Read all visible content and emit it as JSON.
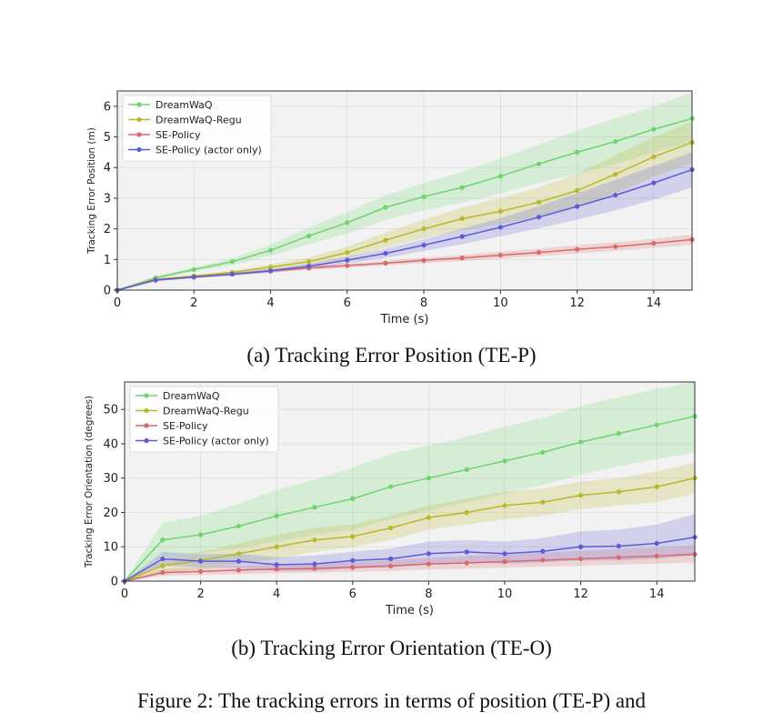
{
  "captions": {
    "a": "(a) Tracking Error Position (TE-P)",
    "b": "(b) Tracking Error Orientation (TE-O)",
    "figure": "Figure 2: The tracking errors in terms of position (TE-P) and"
  },
  "colors": {
    "DreamWaQ": "#6fd46f",
    "DreamWaQ-Regu": "#b8b82a",
    "SE-Policy": "#d96a6a",
    "SE-Policy (actor only)": "#5c5cd6"
  },
  "chart_data": [
    {
      "type": "line",
      "title": "",
      "xlabel": "Time (s)",
      "ylabel": "Tracking Error Position (m)",
      "xlim": [
        0,
        15
      ],
      "ylim": [
        0,
        6.5
      ],
      "xticks": [
        0,
        2,
        4,
        6,
        8,
        10,
        12,
        14
      ],
      "yticks": [
        0,
        1,
        2,
        3,
        4,
        5,
        6
      ],
      "grid": true,
      "legend": "top-left",
      "x": [
        0,
        1,
        2,
        3,
        4,
        5,
        6,
        7,
        8,
        9,
        10,
        11,
        12,
        13,
        14,
        15
      ],
      "series": [
        {
          "name": "DreamWaQ",
          "values": [
            0,
            0.4,
            0.67,
            0.93,
            1.3,
            1.77,
            2.2,
            2.7,
            3.05,
            3.35,
            3.72,
            4.12,
            4.5,
            4.85,
            5.25,
            5.6
          ],
          "band_low": [
            0,
            0.35,
            0.6,
            0.82,
            1.12,
            1.5,
            1.85,
            2.3,
            2.6,
            2.85,
            3.15,
            3.5,
            3.8,
            4.1,
            4.5,
            4.85
          ],
          "band_high": [
            0,
            0.45,
            0.74,
            1.04,
            1.48,
            2.05,
            2.55,
            3.1,
            3.5,
            3.85,
            4.3,
            4.75,
            5.2,
            5.6,
            6.0,
            6.45
          ]
        },
        {
          "name": "DreamWaQ-Regu",
          "values": [
            0,
            0.35,
            0.46,
            0.58,
            0.75,
            0.93,
            1.23,
            1.63,
            2.0,
            2.33,
            2.57,
            2.87,
            3.25,
            3.78,
            4.35,
            4.82
          ],
          "band_low": [
            0,
            0.32,
            0.42,
            0.52,
            0.66,
            0.8,
            1.05,
            1.38,
            1.7,
            1.95,
            2.15,
            2.4,
            2.7,
            3.15,
            3.7,
            4.15
          ],
          "band_high": [
            0,
            0.38,
            0.5,
            0.64,
            0.84,
            1.06,
            1.42,
            1.88,
            2.3,
            2.7,
            3.0,
            3.35,
            3.8,
            4.4,
            5.0,
            5.5
          ]
        },
        {
          "name": "SE-Policy",
          "values": [
            0,
            0.32,
            0.42,
            0.52,
            0.62,
            0.72,
            0.8,
            0.88,
            0.97,
            1.05,
            1.14,
            1.23,
            1.33,
            1.42,
            1.53,
            1.65
          ],
          "band_low": [
            0,
            0.3,
            0.39,
            0.48,
            0.57,
            0.66,
            0.73,
            0.8,
            0.88,
            0.95,
            1.03,
            1.11,
            1.2,
            1.28,
            1.38,
            1.48
          ],
          "band_high": [
            0,
            0.34,
            0.45,
            0.56,
            0.67,
            0.78,
            0.87,
            0.96,
            1.06,
            1.15,
            1.25,
            1.35,
            1.46,
            1.56,
            1.68,
            1.82
          ]
        },
        {
          "name": "SE-Policy (actor only)",
          "values": [
            0,
            0.33,
            0.43,
            0.52,
            0.63,
            0.78,
            0.98,
            1.2,
            1.47,
            1.75,
            2.05,
            2.38,
            2.73,
            3.1,
            3.5,
            3.93
          ],
          "band_low": [
            0,
            0.3,
            0.39,
            0.47,
            0.57,
            0.7,
            0.87,
            1.05,
            1.28,
            1.5,
            1.75,
            2.02,
            2.3,
            2.6,
            2.95,
            3.35
          ],
          "band_high": [
            0,
            0.36,
            0.47,
            0.57,
            0.69,
            0.86,
            1.09,
            1.35,
            1.66,
            2.0,
            2.35,
            2.74,
            3.16,
            3.6,
            4.05,
            4.5
          ]
        }
      ]
    },
    {
      "type": "line",
      "title": "",
      "xlabel": "Time (s)",
      "ylabel": "Tracking Error Orientation (degrees)",
      "xlim": [
        0,
        15
      ],
      "ylim": [
        0,
        58
      ],
      "xticks": [
        0,
        2,
        4,
        6,
        8,
        10,
        12,
        14
      ],
      "yticks": [
        0,
        10,
        20,
        30,
        40,
        50
      ],
      "grid": true,
      "legend": "top-left",
      "x": [
        0,
        1,
        2,
        3,
        4,
        5,
        6,
        7,
        8,
        9,
        10,
        11,
        12,
        13,
        14,
        15
      ],
      "series": [
        {
          "name": "DreamWaQ",
          "values": [
            0,
            12,
            13.5,
            16,
            19,
            21.5,
            24,
            27.5,
            30,
            32.5,
            35,
            37.5,
            40.5,
            43,
            45.5,
            48
          ],
          "band_low": [
            0,
            7,
            8,
            9.5,
            11.5,
            13.5,
            15,
            18,
            20.5,
            23,
            25.5,
            28,
            31,
            33.5,
            35.5,
            37.5
          ],
          "band_high": [
            0,
            17,
            19,
            22.5,
            26.5,
            29.5,
            33,
            37,
            39.5,
            42,
            45,
            47.5,
            51,
            53.5,
            56,
            58
          ]
        },
        {
          "name": "DreamWaQ-Regu",
          "values": [
            0,
            4.5,
            6,
            8,
            10,
            12,
            13,
            15.5,
            18.5,
            20,
            22,
            23,
            25,
            26,
            27.5,
            30
          ],
          "band_low": [
            0,
            2.5,
            3.5,
            5,
            6.5,
            8.5,
            10,
            12,
            15,
            16.5,
            18,
            19,
            21,
            22,
            23,
            25.5
          ],
          "band_high": [
            0,
            6.5,
            8.5,
            11,
            13.5,
            15.5,
            16.5,
            19,
            22,
            24,
            26,
            27,
            29,
            30,
            32,
            34.5
          ]
        },
        {
          "name": "SE-Policy",
          "values": [
            0,
            2.5,
            2.8,
            3.2,
            3.5,
            3.7,
            4,
            4.4,
            5,
            5.3,
            5.7,
            6.1,
            6.5,
            6.9,
            7.3,
            7.8
          ],
          "band_low": [
            0,
            1.5,
            1.8,
            2.1,
            2.3,
            2.5,
            2.7,
            3,
            3.4,
            3.6,
            3.9,
            4.2,
            4.5,
            4.8,
            5.1,
            5.4
          ],
          "band_high": [
            0,
            3.5,
            4,
            4.5,
            4.9,
            5.2,
            5.5,
            6,
            6.8,
            7.3,
            7.8,
            8.3,
            8.8,
            9.3,
            9.8,
            10.5
          ]
        },
        {
          "name": "SE-Policy (actor only)",
          "values": [
            0,
            6.5,
            5.8,
            5.8,
            4.8,
            5,
            6,
            6.5,
            8,
            8.5,
            8,
            8.7,
            10,
            10.2,
            11,
            12.8
          ],
          "band_low": [
            0,
            4.5,
            4,
            3.8,
            3,
            3,
            3.8,
            4,
            5,
            5.5,
            5,
            5.5,
            6,
            6,
            6.5,
            7.5
          ],
          "band_high": [
            0,
            8.5,
            7.8,
            8,
            7,
            7.5,
            8.5,
            9.5,
            11.5,
            12,
            11.5,
            12.5,
            14.5,
            15,
            16.5,
            19.5
          ]
        }
      ]
    }
  ]
}
